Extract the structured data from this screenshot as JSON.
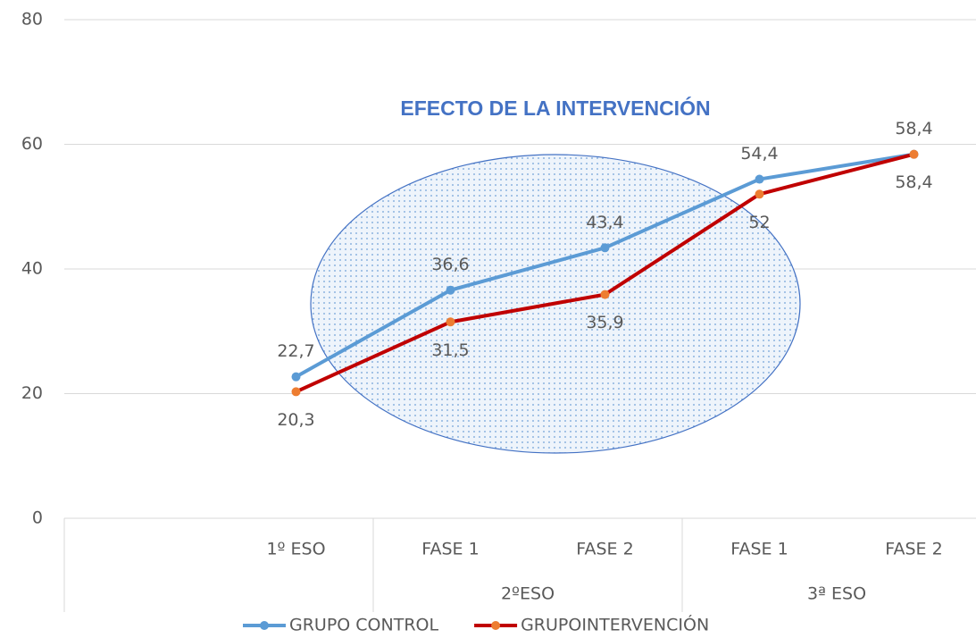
{
  "chart_data": {
    "type": "line",
    "annotation": "EFECTO DE LA INTERVENCIÓN",
    "categories": [
      null,
      "1º ESO",
      "FASE 1",
      "FASE 2",
      "FASE 1",
      "FASE 2"
    ],
    "category_groups": [
      null,
      null,
      "2ºESO",
      "2ºESO",
      "3ª ESO",
      "3ª ESO"
    ],
    "series": [
      {
        "name": "GRUPO CONTROL",
        "color": "#5b9bd5",
        "marker_color": "#5b9bd5",
        "values": [
          null,
          22.7,
          36.6,
          43.4,
          54.4,
          58.4
        ],
        "value_labels": [
          null,
          "22,7",
          "36,6",
          "43,4",
          "54,4",
          "58,4"
        ]
      },
      {
        "name": "GRUPOINTERVENCIÓN",
        "color": "#c00000",
        "marker_color": "#ed7d31",
        "values": [
          null,
          20.3,
          31.5,
          35.9,
          52,
          58.4
        ],
        "value_labels": [
          null,
          "20,3",
          "31,5",
          "35,9",
          "52",
          "58,4"
        ]
      }
    ],
    "ylim": [
      0,
      80
    ],
    "yticks": [
      0,
      20,
      40,
      60,
      80
    ],
    "grid": true,
    "legend": "bottom"
  }
}
